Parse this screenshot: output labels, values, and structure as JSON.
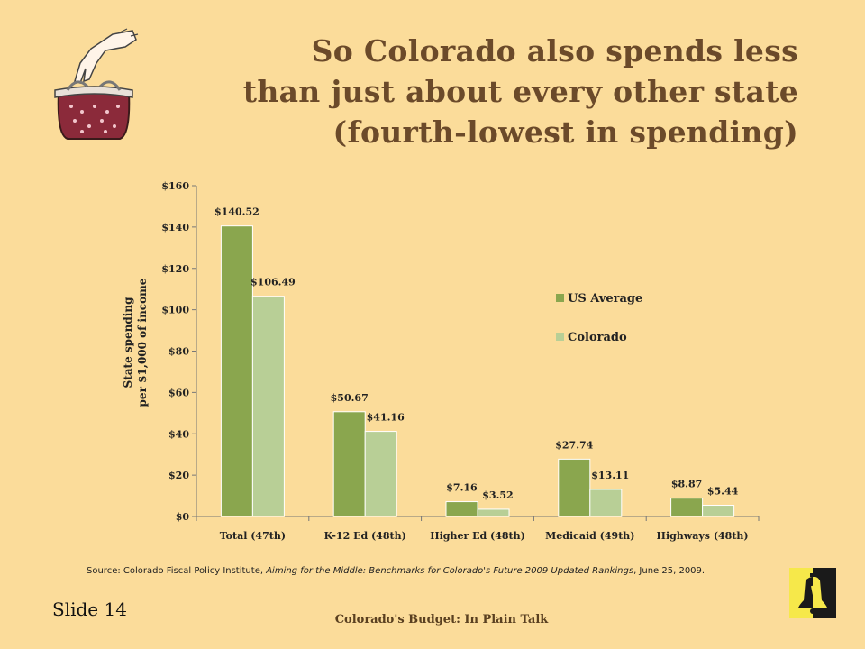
{
  "title": {
    "line1": "So Colorado also spends less",
    "line2": "than just about every other state",
    "line3": "(fourth-lowest in spending)"
  },
  "colors": {
    "us_average": "#8aa64e",
    "colorado": "#b8cf96",
    "title": "#6b4a2a",
    "background": "#fbdc9a"
  },
  "icons": {
    "purse": "purse-icon",
    "logo": "liberty-bell-icon"
  },
  "source": {
    "prefix": "Source: Colorado Fiscal Policy Institute, ",
    "title": "Aiming for the Middle: Benchmarks for Colorado's Future 2009 Updated Rankings",
    "suffix": ", June 25, 2009."
  },
  "slide_label": "Slide 14",
  "footer": "Colorado's Budget: In Plain Talk",
  "chart_data": {
    "type": "bar",
    "ylabel_line1": "State spending",
    "ylabel_line2": "per $1,000 of income",
    "ylim": [
      0,
      160
    ],
    "yticks": [
      "$0",
      "$20",
      "$40",
      "$60",
      "$80",
      "$100",
      "$120",
      "$140",
      "$160"
    ],
    "ytick_values": [
      0,
      20,
      40,
      60,
      80,
      100,
      120,
      140,
      160
    ],
    "categories": [
      "Total (47th)",
      "K-12 Ed (48th)",
      "Higher Ed (48th)",
      "Medicaid (49th)",
      "Highways (48th)"
    ],
    "series": [
      {
        "name": "US Average",
        "values": [
          140.52,
          50.67,
          7.16,
          27.74,
          8.87
        ],
        "labels": [
          "$140.52",
          "$50.67",
          "$7.16",
          "$27.74",
          "$8.87"
        ]
      },
      {
        "name": "Colorado",
        "values": [
          106.49,
          41.16,
          3.52,
          13.11,
          5.44
        ],
        "labels": [
          "$106.49",
          "$41.16",
          "$3.52",
          "$13.11",
          "$5.44"
        ]
      }
    ],
    "legend_position": "right",
    "grid": false
  }
}
